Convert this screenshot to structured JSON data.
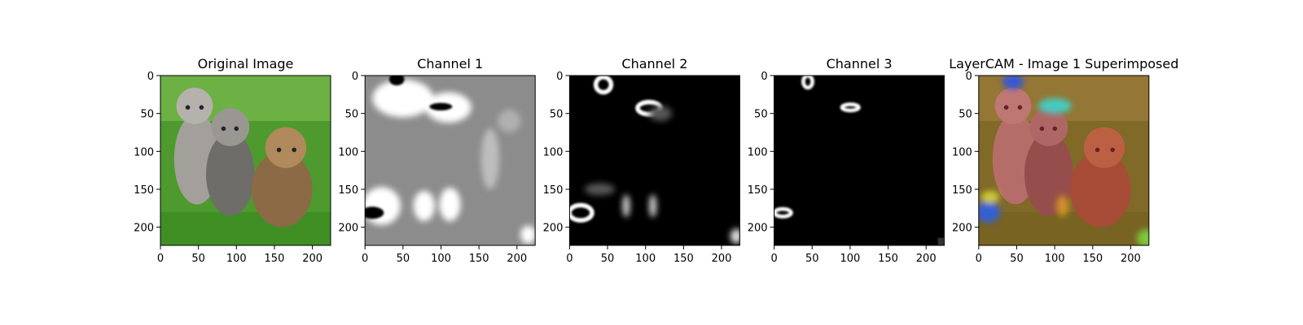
{
  "chart_data": [
    {
      "type": "image",
      "title": "Original Image",
      "xlim": [
        0,
        224
      ],
      "ylim": [
        224,
        0
      ],
      "xticks": [
        0,
        50,
        100,
        150,
        200
      ],
      "yticks": [
        0,
        50,
        100,
        150,
        200
      ]
    },
    {
      "type": "image",
      "title": "Channel 1",
      "xlim": [
        0,
        224
      ],
      "ylim": [
        224,
        0
      ],
      "xticks": [
        0,
        50,
        100,
        150,
        200
      ],
      "yticks": [
        0,
        50,
        100,
        150,
        200
      ]
    },
    {
      "type": "image",
      "title": "Channel 2",
      "xlim": [
        0,
        224
      ],
      "ylim": [
        224,
        0
      ],
      "xticks": [
        0,
        50,
        100,
        150,
        200
      ],
      "yticks": [
        0,
        50,
        100,
        150,
        200
      ]
    },
    {
      "type": "image",
      "title": "Channel 3",
      "xlim": [
        0,
        224
      ],
      "ylim": [
        224,
        0
      ],
      "xticks": [
        0,
        50,
        100,
        150,
        200
      ],
      "yticks": [
        0,
        50,
        100,
        150,
        200
      ]
    },
    {
      "type": "image",
      "title": "LayerCAM - Image 1 Superimposed",
      "xlim": [
        0,
        224
      ],
      "ylim": [
        224,
        0
      ],
      "xticks": [
        0,
        50,
        100,
        150,
        200
      ],
      "yticks": [
        0,
        50,
        100,
        150,
        200
      ]
    }
  ]
}
